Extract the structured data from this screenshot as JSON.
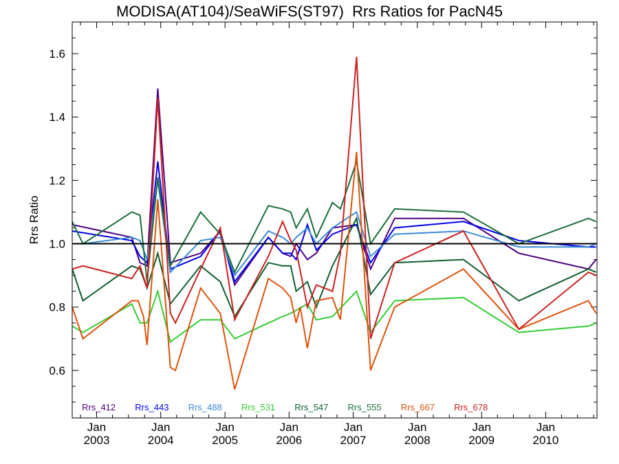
{
  "chart_data": {
    "type": "line",
    "title": "MODISA(AT104)/SeaWiFS(ST97)  Rrs Ratios for PacN45",
    "xlabel": "",
    "ylabel": "Rrs Ratio",
    "xlim": [
      "2002-08-15",
      "2010-10-20"
    ],
    "ylim": [
      0.45,
      1.7
    ],
    "yticks": [
      "0.6",
      "0.8",
      "1.0",
      "1.2",
      "1.4",
      "1.6"
    ],
    "xticks": [
      {
        "month": "Jan",
        "year": "2003",
        "date": "2003-01-01"
      },
      {
        "month": "Jan",
        "year": "2004",
        "date": "2004-01-01"
      },
      {
        "month": "Jan",
        "year": "2005",
        "date": "2005-01-01"
      },
      {
        "month": "Jan",
        "year": "2006",
        "date": "2006-01-01"
      },
      {
        "month": "Jan",
        "year": "2007",
        "date": "2007-01-01"
      },
      {
        "month": "Jan",
        "year": "2008",
        "date": "2008-01-01"
      },
      {
        "month": "Jan",
        "year": "2009",
        "date": "2009-01-01"
      },
      {
        "month": "Jan",
        "year": "2010",
        "date": "2010-01-01"
      }
    ],
    "reference_line": 1.0,
    "legend_position": "bottom",
    "series": [
      {
        "name": "Rrs_412",
        "color": "#4B0082",
        "points": [
          [
            "2002-08-15",
            1.06
          ],
          [
            "2003-07-20",
            1.02
          ],
          [
            "2003-09-05",
            0.94
          ],
          [
            "2003-10-15",
            0.93
          ],
          [
            "2003-12-15",
            1.49
          ],
          [
            "2004-02-25",
            0.94
          ],
          [
            "2004-08-15",
            0.97
          ],
          [
            "2004-12-05",
            1.04
          ],
          [
            "2005-02-25",
            0.87
          ],
          [
            "2005-09-05",
            1.02
          ],
          [
            "2005-11-25",
            0.97
          ],
          [
            "2006-01-10",
            0.96
          ],
          [
            "2006-02-10",
            1.0
          ],
          [
            "2006-04-15",
            0.95
          ],
          [
            "2006-06-05",
            0.97
          ],
          [
            "2006-09-05",
            1.05
          ],
          [
            "2007-01-20",
            1.06
          ],
          [
            "2007-04-10",
            0.92
          ],
          [
            "2007-08-25",
            1.08
          ],
          [
            "2008-09-20",
            1.08
          ],
          [
            "2009-08-01",
            0.97
          ],
          [
            "2010-09-01",
            0.92
          ],
          [
            "2010-10-15",
            0.95
          ]
        ]
      },
      {
        "name": "Rrs_443",
        "color": "#0000EE",
        "points": [
          [
            "2002-08-15",
            1.04
          ],
          [
            "2003-07-20",
            1.01
          ],
          [
            "2003-09-05",
            0.96
          ],
          [
            "2003-10-15",
            0.94
          ],
          [
            "2003-12-15",
            1.26
          ],
          [
            "2004-02-25",
            0.92
          ],
          [
            "2004-08-15",
            0.96
          ],
          [
            "2004-12-05",
            1.04
          ],
          [
            "2005-02-25",
            0.88
          ],
          [
            "2005-09-05",
            1.02
          ],
          [
            "2005-11-25",
            0.97
          ],
          [
            "2006-01-10",
            0.97
          ],
          [
            "2006-02-10",
            0.95
          ],
          [
            "2006-04-15",
            1.06
          ],
          [
            "2006-06-05",
            0.98
          ],
          [
            "2006-09-05",
            1.03
          ],
          [
            "2007-01-20",
            1.06
          ],
          [
            "2007-04-10",
            0.94
          ],
          [
            "2007-08-25",
            1.05
          ],
          [
            "2008-09-20",
            1.07
          ],
          [
            "2009-08-01",
            1.01
          ],
          [
            "2010-09-01",
            0.99
          ],
          [
            "2010-10-15",
            0.99
          ]
        ]
      },
      {
        "name": "Rrs_488",
        "color": "#3B8BD4",
        "points": [
          [
            "2002-08-15",
            1.0
          ],
          [
            "2002-10-15",
            1.0
          ],
          [
            "2003-07-20",
            1.02
          ],
          [
            "2003-09-05",
            1.01
          ],
          [
            "2003-10-15",
            0.95
          ],
          [
            "2003-12-15",
            1.2
          ],
          [
            "2004-02-25",
            0.91
          ],
          [
            "2004-08-15",
            1.01
          ],
          [
            "2004-12-05",
            1.02
          ],
          [
            "2005-02-25",
            0.9
          ],
          [
            "2005-09-05",
            1.04
          ],
          [
            "2005-11-25",
            1.02
          ],
          [
            "2006-01-10",
            1.0
          ],
          [
            "2006-02-10",
            1.02
          ],
          [
            "2006-04-15",
            1.05
          ],
          [
            "2006-06-05",
            1.0
          ],
          [
            "2006-09-05",
            1.05
          ],
          [
            "2007-01-20",
            1.1
          ],
          [
            "2007-04-10",
            0.96
          ],
          [
            "2007-08-25",
            1.03
          ],
          [
            "2008-09-20",
            1.04
          ],
          [
            "2009-08-01",
            0.99
          ],
          [
            "2010-09-01",
            0.99
          ],
          [
            "2010-10-15",
            1.0
          ]
        ]
      },
      {
        "name": "Rrs_531",
        "color": "#33CC33",
        "points": [
          [
            "2002-08-15",
            0.74
          ],
          [
            "2002-10-15",
            0.72
          ],
          [
            "2003-07-20",
            0.81
          ],
          [
            "2003-09-05",
            0.75
          ],
          [
            "2003-10-15",
            0.75
          ],
          [
            "2003-12-15",
            0.85
          ],
          [
            "2004-02-25",
            0.69
          ],
          [
            "2004-08-15",
            0.76
          ],
          [
            "2004-12-05",
            0.76
          ],
          [
            "2005-02-25",
            0.7
          ],
          [
            "2005-09-05",
            0.75
          ],
          [
            "2005-11-25",
            0.77
          ],
          [
            "2006-01-10",
            0.78
          ],
          [
            "2006-04-15",
            0.81
          ],
          [
            "2006-06-05",
            0.76
          ],
          [
            "2006-09-05",
            0.77
          ],
          [
            "2007-01-20",
            0.85
          ],
          [
            "2007-04-10",
            0.72
          ],
          [
            "2007-08-25",
            0.82
          ],
          [
            "2008-09-20",
            0.83
          ],
          [
            "2009-08-01",
            0.72
          ],
          [
            "2010-09-01",
            0.74
          ],
          [
            "2010-10-15",
            0.75
          ]
        ]
      },
      {
        "name": "Rrs_547",
        "color": "#0D5E2D",
        "points": [
          [
            "2002-08-15",
            0.92
          ],
          [
            "2002-10-15",
            0.82
          ],
          [
            "2003-07-20",
            0.93
          ],
          [
            "2003-09-05",
            0.92
          ],
          [
            "2003-10-15",
            0.86
          ],
          [
            "2003-12-15",
            0.97
          ],
          [
            "2004-02-25",
            0.81
          ],
          [
            "2004-08-15",
            0.93
          ],
          [
            "2004-12-05",
            0.88
          ],
          [
            "2005-02-25",
            0.77
          ],
          [
            "2005-09-05",
            0.94
          ],
          [
            "2005-11-25",
            0.93
          ],
          [
            "2006-01-10",
            0.93
          ],
          [
            "2006-02-10",
            0.85
          ],
          [
            "2006-04-15",
            0.88
          ],
          [
            "2006-06-05",
            0.8
          ],
          [
            "2006-09-05",
            0.93
          ],
          [
            "2007-01-20",
            1.08
          ],
          [
            "2007-04-10",
            0.84
          ],
          [
            "2007-08-25",
            0.94
          ],
          [
            "2008-09-20",
            0.95
          ],
          [
            "2009-08-01",
            0.82
          ],
          [
            "2010-09-01",
            0.92
          ],
          [
            "2010-10-15",
            0.91
          ]
        ]
      },
      {
        "name": "Rrs_555",
        "color": "#1B6E3B",
        "points": [
          [
            "2002-08-15",
            1.07
          ],
          [
            "2002-10-15",
            1.0
          ],
          [
            "2003-07-20",
            1.1
          ],
          [
            "2003-09-05",
            1.09
          ],
          [
            "2003-10-15",
            0.88
          ],
          [
            "2003-12-15",
            1.21
          ],
          [
            "2004-02-25",
            0.93
          ],
          [
            "2004-08-15",
            1.1
          ],
          [
            "2004-12-05",
            1.03
          ],
          [
            "2005-02-25",
            0.91
          ],
          [
            "2005-09-05",
            1.12
          ],
          [
            "2005-11-25",
            1.11
          ],
          [
            "2006-01-10",
            1.1
          ],
          [
            "2006-02-10",
            1.05
          ],
          [
            "2006-04-15",
            1.11
          ],
          [
            "2006-06-05",
            1.02
          ],
          [
            "2006-09-05",
            1.13
          ],
          [
            "2006-10-20",
            1.11
          ],
          [
            "2007-01-20",
            1.26
          ],
          [
            "2007-04-10",
            1.0
          ],
          [
            "2007-08-25",
            1.11
          ],
          [
            "2008-09-20",
            1.1
          ],
          [
            "2009-08-01",
            1.0
          ],
          [
            "2010-09-01",
            1.08
          ],
          [
            "2010-10-15",
            1.07
          ]
        ]
      },
      {
        "name": "Rrs_667",
        "color": "#E0520B",
        "points": [
          [
            "2002-08-15",
            0.8
          ],
          [
            "2002-10-15",
            0.7
          ],
          [
            "2003-07-20",
            0.82
          ],
          [
            "2003-08-25",
            0.82
          ],
          [
            "2003-09-25",
            0.77
          ],
          [
            "2003-10-15",
            0.68
          ],
          [
            "2003-12-15",
            1.14
          ],
          [
            "2004-02-25",
            0.61
          ],
          [
            "2004-03-25",
            0.6
          ],
          [
            "2004-08-15",
            0.86
          ],
          [
            "2004-12-05",
            0.78
          ],
          [
            "2005-02-25",
            0.54
          ],
          [
            "2005-09-05",
            0.89
          ],
          [
            "2005-11-25",
            0.86
          ],
          [
            "2006-01-10",
            0.83
          ],
          [
            "2006-02-10",
            0.75
          ],
          [
            "2006-03-05",
            0.8
          ],
          [
            "2006-04-15",
            0.67
          ],
          [
            "2006-06-05",
            0.82
          ],
          [
            "2006-09-05",
            0.83
          ],
          [
            "2006-10-20",
            0.76
          ],
          [
            "2007-01-20",
            1.29
          ],
          [
            "2007-04-10",
            0.6
          ],
          [
            "2007-08-25",
            0.8
          ],
          [
            "2008-09-20",
            0.92
          ],
          [
            "2009-08-01",
            0.73
          ],
          [
            "2010-09-01",
            0.82
          ],
          [
            "2010-10-15",
            0.78
          ]
        ]
      },
      {
        "name": "Rrs_678",
        "color": "#CC1F1F",
        "points": [
          [
            "2002-08-15",
            0.92
          ],
          [
            "2002-10-15",
            0.93
          ],
          [
            "2003-07-20",
            0.89
          ],
          [
            "2003-09-05",
            0.93
          ],
          [
            "2003-10-15",
            0.86
          ],
          [
            "2003-12-15",
            1.46
          ],
          [
            "2004-02-25",
            0.78
          ],
          [
            "2004-03-25",
            0.75
          ],
          [
            "2004-08-15",
            0.92
          ],
          [
            "2004-12-05",
            1.05
          ],
          [
            "2005-02-25",
            0.76
          ],
          [
            "2005-09-05",
            0.96
          ],
          [
            "2005-11-25",
            1.07
          ],
          [
            "2006-01-10",
            1.01
          ],
          [
            "2006-02-10",
            0.98
          ],
          [
            "2006-04-15",
            0.8
          ],
          [
            "2006-06-05",
            0.87
          ],
          [
            "2006-09-05",
            0.85
          ],
          [
            "2006-10-20",
            0.97
          ],
          [
            "2007-01-20",
            1.59
          ],
          [
            "2007-04-10",
            0.7
          ],
          [
            "2007-08-25",
            0.94
          ],
          [
            "2008-09-20",
            1.04
          ],
          [
            "2009-08-01",
            0.73
          ],
          [
            "2010-09-01",
            0.91
          ],
          [
            "2010-10-15",
            0.9
          ]
        ]
      }
    ]
  }
}
